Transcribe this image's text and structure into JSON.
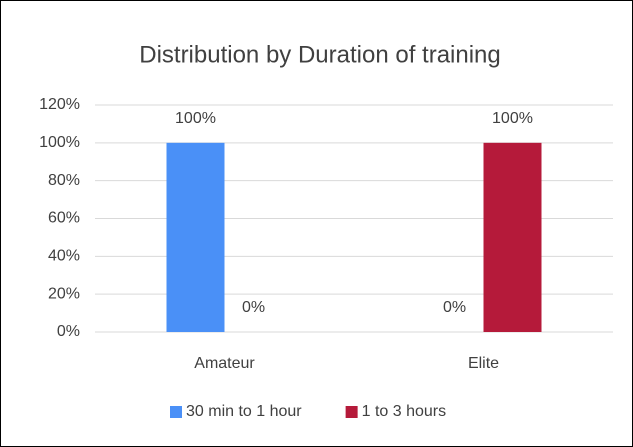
{
  "chart_data": {
    "type": "bar",
    "title": "Distribution by Duration of training",
    "categories": [
      "Amateur",
      "Elite"
    ],
    "series": [
      {
        "name": "30 min to 1 hour",
        "color": "#4a90f7",
        "values": [
          100,
          0
        ],
        "value_labels": [
          "100%",
          "0%"
        ]
      },
      {
        "name": "1 to 3 hours",
        "color": "#b51a3a",
        "values": [
          0,
          100
        ],
        "value_labels": [
          "0%",
          "100%"
        ]
      }
    ],
    "ylim": [
      0,
      120
    ],
    "yticks": [
      {
        "value": 0,
        "label": "0%"
      },
      {
        "value": 20,
        "label": "20%"
      },
      {
        "value": 40,
        "label": "40%"
      },
      {
        "value": 60,
        "label": "60%"
      },
      {
        "value": 80,
        "label": "80%"
      },
      {
        "value": 100,
        "label": "100%"
      },
      {
        "value": 120,
        "label": "120%"
      }
    ],
    "grid": true,
    "legend": "bottom"
  }
}
